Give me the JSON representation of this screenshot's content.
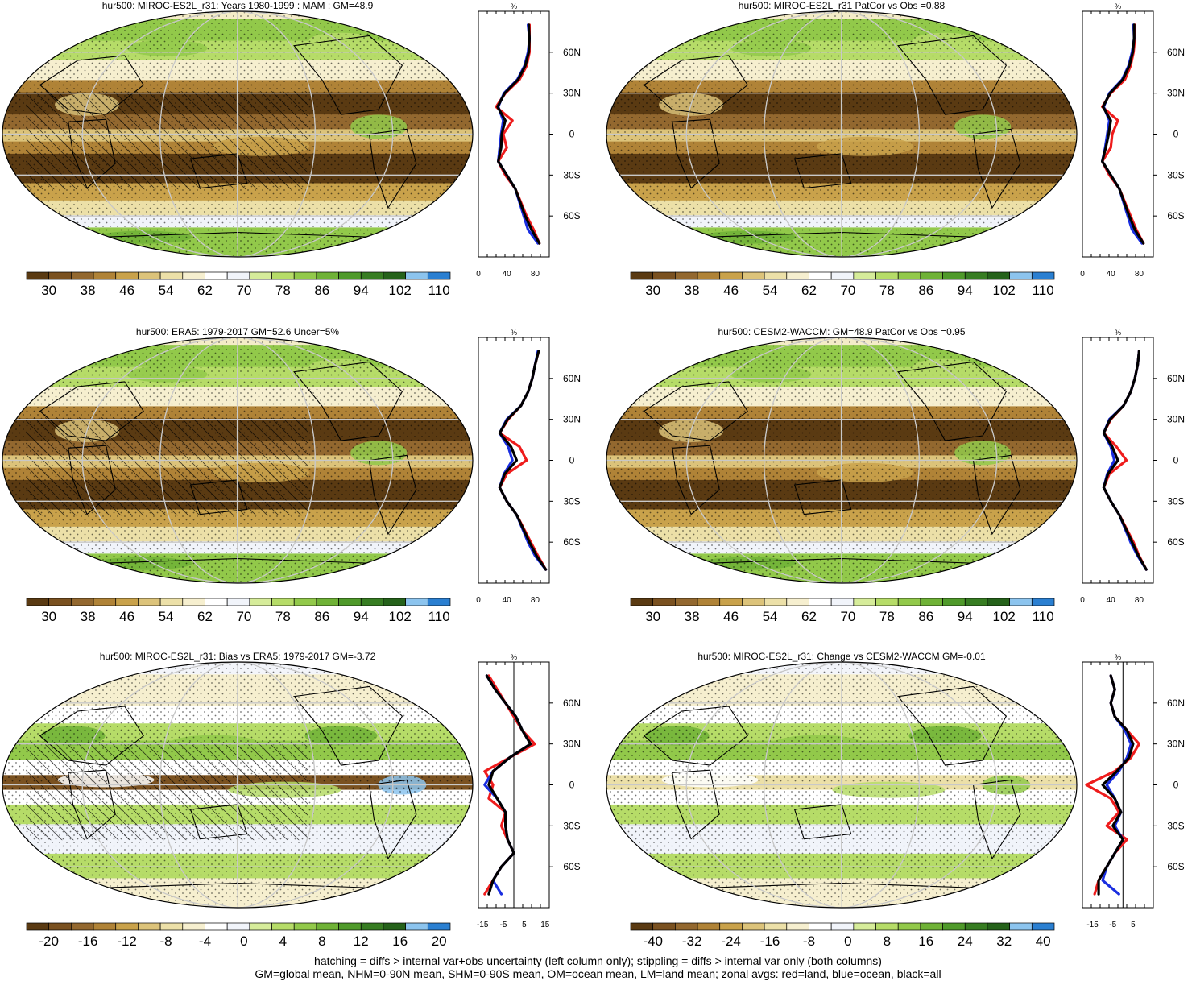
{
  "footer": {
    "line1": "hatching = diffs > internal var+obs uncertainty (left column only); stippling = diffs > internal var only (both columns)",
    "line2": "GM=global mean, NHM=0-90N mean, SHM=0-90S mean, OM=ocean mean, LM=land mean; zonal avgs: red=land, blue=ocean, black=all"
  },
  "colors": {
    "land": "#ee1c1c",
    "ocean": "#1a2ee0",
    "all": "#000000",
    "abs_palette": [
      "#5a3a12",
      "#7a5120",
      "#93682f",
      "#b08337",
      "#c9a24b",
      "#dcc37a",
      "#ece0a8",
      "#f6efcf",
      "#ffffff",
      "#f1f4fa",
      "#d6ec9a",
      "#b6dc68",
      "#92c94a",
      "#6fb236",
      "#4f9a2a",
      "#377d22",
      "#25621a",
      "#8cc4ee",
      "#2a7fd1"
    ],
    "diff_palette": [
      "#5a3a12",
      "#7a5120",
      "#93682f",
      "#b08337",
      "#c9a24b",
      "#dcc37a",
      "#ece0a8",
      "#f6efcf",
      "#ffffff",
      "#f1f4fa",
      "#d6ec9a",
      "#b6dc68",
      "#92c94a",
      "#6fb236",
      "#4f9a2a",
      "#377d22",
      "#25621a",
      "#8cc4ee",
      "#2a7fd1"
    ]
  },
  "chart_data": [
    {
      "type": "map",
      "title": "hur500: MIROC-ES2L_r31: Years 1980-1999 : MAM : GM=48.9",
      "colorbar": {
        "labels": [
          "30",
          "38",
          "46",
          "54",
          "62",
          "70",
          "78",
          "86",
          "94",
          "102",
          "110"
        ]
      },
      "zonal": {
        "unit": "%",
        "xlim": [
          0,
          100
        ],
        "xticks": [
          "0",
          "40",
          "80"
        ],
        "ylabels": [
          "60N",
          "30N",
          "0",
          "30S",
          "60S"
        ],
        "reference_x": null,
        "lat": [
          80,
          70,
          60,
          50,
          40,
          30,
          20,
          10,
          0,
          -10,
          -20,
          -30,
          -40,
          -50,
          -60,
          -70,
          -80
        ],
        "land": [
          72,
          72,
          72,
          68,
          58,
          38,
          25,
          48,
          35,
          40,
          28,
          38,
          52,
          60,
          68,
          78,
          86
        ],
        "ocean": [
          70,
          72,
          70,
          65,
          55,
          36,
          28,
          35,
          32,
          30,
          28,
          40,
          52,
          58,
          64,
          70,
          84
        ],
        "all": [
          71,
          72,
          71,
          66,
          56,
          37,
          27,
          38,
          33,
          32,
          28,
          40,
          52,
          59,
          66,
          75,
          86
        ]
      }
    },
    {
      "type": "map",
      "title": "hur500: MIROC-ES2L_r31 PatCor vs Obs =0.88",
      "colorbar": {
        "labels": [
          "30",
          "38",
          "46",
          "54",
          "62",
          "70",
          "78",
          "86",
          "94",
          "102",
          "110"
        ]
      },
      "zonal": {
        "unit": "%",
        "xlim": [
          0,
          100
        ],
        "xticks": [
          "0",
          "40",
          "80"
        ],
        "ylabels": [
          "60N",
          "30N",
          "0",
          "30S",
          "60S"
        ],
        "reference_x": null,
        "lat": [
          80,
          70,
          60,
          50,
          40,
          30,
          20,
          10,
          0,
          -10,
          -20,
          -30,
          -40,
          -50,
          -60,
          -70,
          -80
        ],
        "land": [
          74,
          74,
          72,
          68,
          60,
          40,
          28,
          50,
          42,
          40,
          28,
          38,
          52,
          60,
          68,
          76,
          86
        ],
        "ocean": [
          72,
          73,
          70,
          65,
          56,
          38,
          30,
          38,
          35,
          32,
          28,
          40,
          52,
          58,
          64,
          70,
          84
        ],
        "all": [
          73,
          73,
          71,
          66,
          57,
          39,
          29,
          40,
          37,
          33,
          28,
          40,
          52,
          59,
          66,
          74,
          86
        ]
      }
    },
    {
      "type": "map",
      "title": "hur500: ERA5: 1979-2017 GM=52.6 Uncer=5%",
      "colorbar": {
        "labels": [
          "30",
          "38",
          "46",
          "54",
          "62",
          "70",
          "78",
          "86",
          "94",
          "102",
          "110"
        ]
      },
      "zonal": {
        "unit": "%",
        "xlim": [
          0,
          100
        ],
        "xticks": [
          "0",
          "40",
          "80"
        ],
        "ylabels": [
          "60N",
          "30N",
          "0",
          "30S",
          "60S"
        ],
        "reference_x": null,
        "lat": [
          80,
          70,
          60,
          50,
          40,
          30,
          20,
          10,
          0,
          -10,
          -20,
          -30,
          -40,
          -50,
          -60,
          -70,
          -80
        ],
        "land": [
          85,
          80,
          76,
          70,
          60,
          42,
          30,
          58,
          68,
          40,
          30,
          40,
          54,
          64,
          74,
          84,
          95
        ],
        "ocean": [
          84,
          80,
          76,
          70,
          60,
          40,
          30,
          42,
          48,
          36,
          30,
          40,
          54,
          62,
          70,
          80,
          95
        ],
        "all": [
          85,
          80,
          76,
          70,
          60,
          41,
          30,
          46,
          54,
          37,
          30,
          40,
          54,
          63,
          72,
          82,
          95
        ]
      }
    },
    {
      "type": "map",
      "title": "hur500: CESM2-WACCM: GM=48.9 PatCor vs Obs =0.95",
      "colorbar": {
        "labels": [
          "30",
          "38",
          "46",
          "54",
          "62",
          "70",
          "78",
          "86",
          "94",
          "102",
          "110"
        ]
      },
      "zonal": {
        "unit": "%",
        "xlim": [
          0,
          100
        ],
        "xticks": [
          "0",
          "40",
          "80"
        ],
        "ylabels": [
          "60N",
          "30N",
          "0",
          "30S",
          "60S"
        ],
        "reference_x": null,
        "lat": [
          80,
          70,
          60,
          50,
          40,
          30,
          20,
          10,
          0,
          -10,
          -20,
          -30,
          -40,
          -50,
          -60,
          -70,
          -80
        ],
        "land": [
          80,
          78,
          74,
          68,
          58,
          40,
          30,
          48,
          62,
          38,
          30,
          40,
          52,
          62,
          72,
          80,
          90
        ],
        "ocean": [
          80,
          78,
          74,
          68,
          58,
          38,
          30,
          40,
          45,
          35,
          30,
          40,
          52,
          60,
          68,
          78,
          90
        ],
        "all": [
          80,
          78,
          74,
          68,
          58,
          39,
          30,
          42,
          50,
          36,
          30,
          40,
          52,
          61,
          70,
          79,
          90
        ]
      }
    },
    {
      "type": "map",
      "title": "hur500: MIROC-ES2L_r31: Bias vs ERA5: 1979-2017 GM=-3.72",
      "colorbar": {
        "labels": [
          "-20",
          "-16",
          "-12",
          "-8",
          "-4",
          "0",
          "4",
          "8",
          "12",
          "16",
          "20"
        ]
      },
      "zonal": {
        "unit": "%",
        "xlim": [
          -17,
          17
        ],
        "xticks": [
          "-15",
          "-5",
          "5",
          "15"
        ],
        "ylabels": [
          "60N",
          "30N",
          "0",
          "30S",
          "60S"
        ],
        "reference_x": 0,
        "lat": [
          80,
          70,
          60,
          50,
          40,
          30,
          20,
          10,
          0,
          -10,
          -20,
          -30,
          -40,
          -50,
          -60,
          -70,
          -80
        ],
        "land": [
          -12,
          -8,
          -4,
          0,
          4,
          10,
          -2,
          -14,
          -10,
          -12,
          -4,
          -6,
          -3,
          0,
          -6,
          -10,
          -14
        ],
        "ocean": [
          -13,
          -9,
          -4,
          1,
          4,
          8,
          -2,
          -10,
          -14,
          -8,
          -4,
          -4,
          -3,
          0,
          -6,
          -10,
          -6
        ],
        "all": [
          -13,
          -9,
          -4,
          1,
          4,
          8,
          -2,
          -10,
          -12,
          -8,
          -4,
          -4,
          -3,
          0,
          -6,
          -10,
          -12
        ]
      }
    },
    {
      "type": "map",
      "title": "hur500: MIROC-ES2L_r31: Change vs CESM2-WACCM GM=-0.01",
      "colorbar": {
        "labels": [
          "-40",
          "-32",
          "-24",
          "-16",
          "-8",
          "0",
          "8",
          "16",
          "24",
          "32",
          "40"
        ]
      },
      "zonal": {
        "unit": "%",
        "xlim": [
          -20,
          15
        ],
        "xticks": [
          "-15",
          "-5",
          "5"
        ],
        "ylabels": [
          "60N",
          "30N",
          "0",
          "30S",
          "60S"
        ],
        "reference_x": 0,
        "lat": [
          80,
          70,
          60,
          50,
          40,
          30,
          20,
          10,
          0,
          -10,
          -20,
          -30,
          -40,
          -50,
          -60,
          -70,
          -80
        ],
        "land": [
          -6,
          -4,
          -6,
          -4,
          2,
          8,
          4,
          -4,
          -18,
          -6,
          -2,
          -8,
          2,
          -4,
          -8,
          -12,
          -14
        ],
        "ocean": [
          -6,
          -4,
          -6,
          -4,
          1,
          4,
          2,
          -2,
          -8,
          -4,
          -1,
          -4,
          0,
          -4,
          -8,
          -10,
          -2
        ],
        "all": [
          -6,
          -4,
          -6,
          -4,
          2,
          5,
          3,
          -3,
          -10,
          -4,
          -1,
          -5,
          0,
          -4,
          -8,
          -12,
          -12
        ]
      }
    }
  ]
}
